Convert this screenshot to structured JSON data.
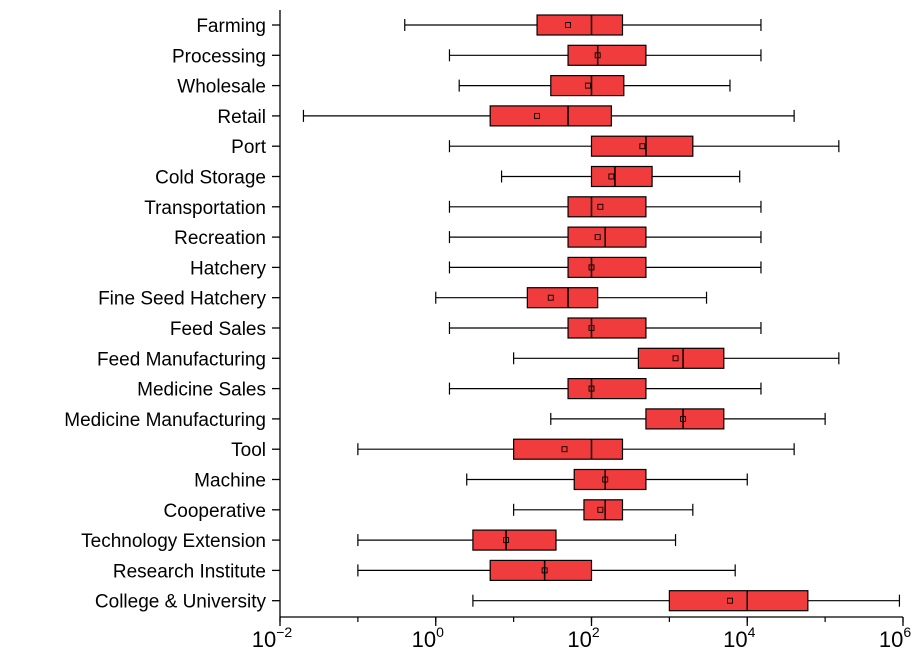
{
  "chart_data": {
    "type": "box",
    "orientation": "horizontal",
    "x_scale": "log10",
    "xlim": [
      0.01,
      1000000
    ],
    "x_ticks": [
      {
        "value": 0.01,
        "base": "10",
        "exp": "−2"
      },
      {
        "value": 1,
        "base": "10",
        "exp": "0"
      },
      {
        "value": 100,
        "base": "10",
        "exp": "2"
      },
      {
        "value": 10000,
        "base": "10",
        "exp": "4"
      },
      {
        "value": 1000000,
        "base": "10",
        "exp": "6"
      }
    ],
    "box_color": "#f03c3c",
    "categories": [
      "Farming",
      "Processing",
      "Wholesale",
      "Retail",
      "Port",
      "Cold Storage",
      "Transportation",
      "Recreation",
      "Hatchery",
      "Fine Seed Hatchery",
      "Feed Sales",
      "Feed Manufacturing",
      "Medicine Sales",
      "Medicine Manufacturing",
      "Tool",
      "Machine",
      "Cooperative",
      "Technology Extension",
      "Research Institute",
      "College & University"
    ],
    "boxes": [
      {
        "min": 0.4,
        "q1": 20,
        "median": 100,
        "q3": 250,
        "max": 15000,
        "mean": 50
      },
      {
        "min": 1.5,
        "q1": 50,
        "median": 120,
        "q3": 500,
        "max": 15000,
        "mean": 120
      },
      {
        "min": 2,
        "q1": 30,
        "median": 100,
        "q3": 260,
        "max": 6000,
        "mean": 90
      },
      {
        "min": 0.02,
        "q1": 5,
        "median": 50,
        "q3": 180,
        "max": 40000,
        "mean": 20
      },
      {
        "min": 1.5,
        "q1": 100,
        "median": 500,
        "q3": 2000,
        "max": 150000,
        "mean": 450
      },
      {
        "min": 7,
        "q1": 100,
        "median": 200,
        "q3": 600,
        "max": 8000,
        "mean": 180
      },
      {
        "min": 1.5,
        "q1": 50,
        "median": 100,
        "q3": 500,
        "max": 15000,
        "mean": 130
      },
      {
        "min": 1.5,
        "q1": 50,
        "median": 150,
        "q3": 500,
        "max": 15000,
        "mean": 120
      },
      {
        "min": 1.5,
        "q1": 50,
        "median": 100,
        "q3": 500,
        "max": 15000,
        "mean": 100
      },
      {
        "min": 1,
        "q1": 15,
        "median": 50,
        "q3": 120,
        "max": 3000,
        "mean": 30
      },
      {
        "min": 1.5,
        "q1": 50,
        "median": 100,
        "q3": 500,
        "max": 15000,
        "mean": 100
      },
      {
        "min": 10,
        "q1": 400,
        "median": 1500,
        "q3": 5000,
        "max": 150000,
        "mean": 1200
      },
      {
        "min": 1.5,
        "q1": 50,
        "median": 100,
        "q3": 500,
        "max": 15000,
        "mean": 100
      },
      {
        "min": 30,
        "q1": 500,
        "median": 1500,
        "q3": 5000,
        "max": 100000,
        "mean": 1500
      },
      {
        "min": 0.1,
        "q1": 10,
        "median": 100,
        "q3": 250,
        "max": 40000,
        "mean": 45
      },
      {
        "min": 2.5,
        "q1": 60,
        "median": 150,
        "q3": 500,
        "max": 10000,
        "mean": 150
      },
      {
        "min": 10,
        "q1": 80,
        "median": 150,
        "q3": 250,
        "max": 2000,
        "mean": 130
      },
      {
        "min": 0.1,
        "q1": 3,
        "median": 8,
        "q3": 35,
        "max": 1200,
        "mean": 8
      },
      {
        "min": 0.1,
        "q1": 5,
        "median": 25,
        "q3": 100,
        "max": 7000,
        "mean": 25
      },
      {
        "min": 3,
        "q1": 1000,
        "median": 10000,
        "q3": 60000,
        "max": 900000,
        "mean": 6000
      }
    ]
  }
}
